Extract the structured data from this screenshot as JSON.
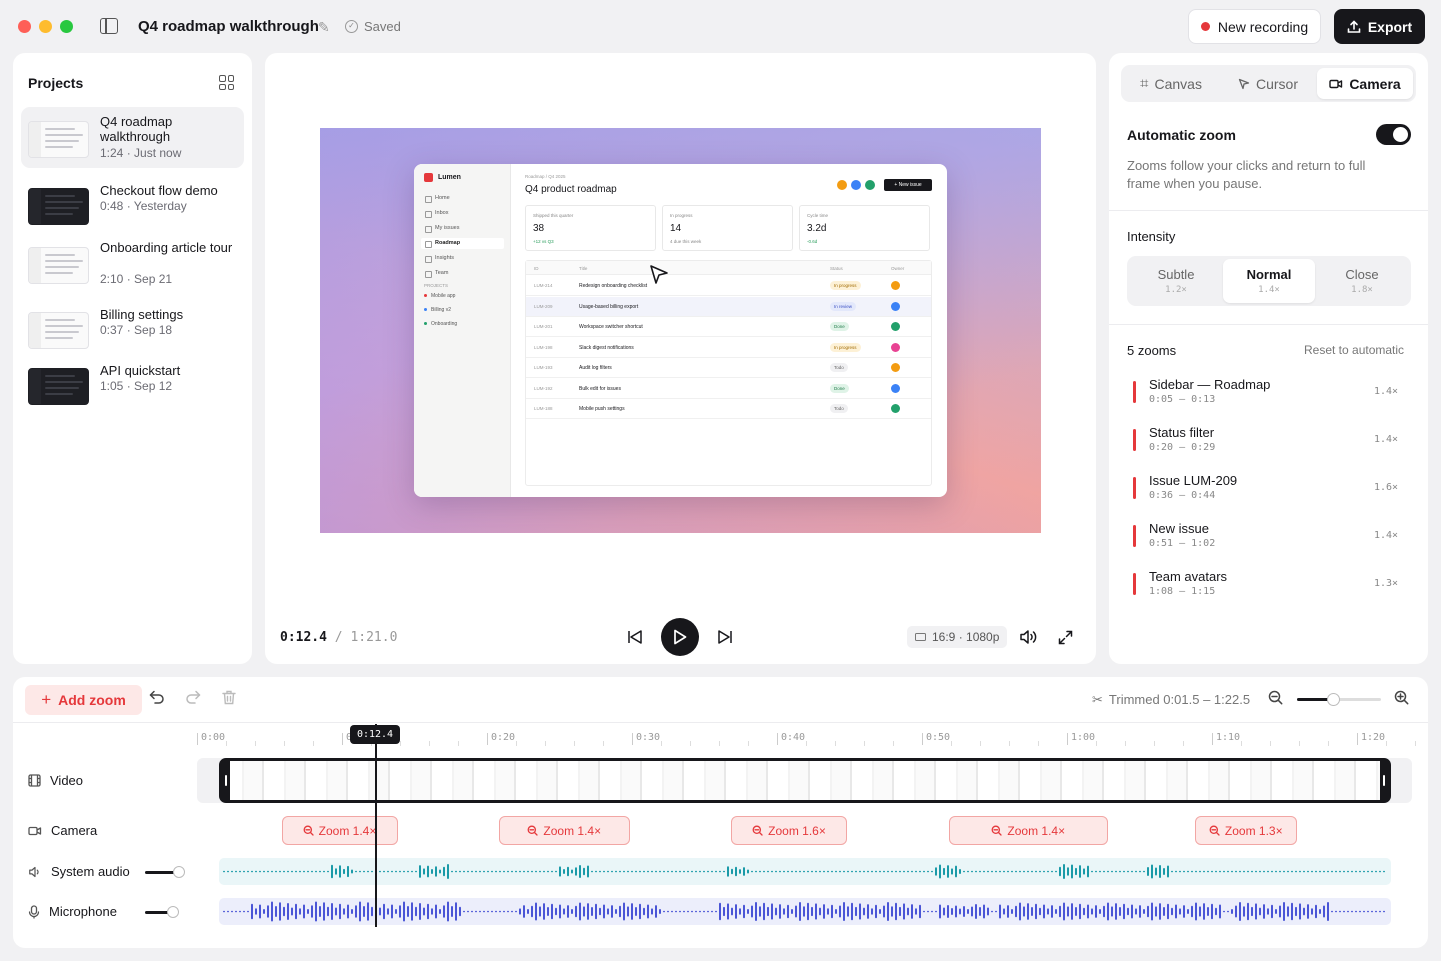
{
  "window": {
    "title": "Q4 roadmap walkthrough",
    "saved_status": "Saved"
  },
  "toolbar": {
    "new_recording_label": "New recording",
    "export_label": "Export"
  },
  "projects": {
    "heading": "Projects",
    "items": [
      {
        "name": "Q4 roadmap walkthrough",
        "meta": "1:24 · Just now",
        "theme": "light"
      },
      {
        "name": "Checkout flow demo",
        "meta": "0:48 · Yesterday",
        "theme": "dark"
      },
      {
        "name": "Onboarding article tour",
        "meta": "2:10 · Sep 21",
        "theme": "light"
      },
      {
        "name": "Billing settings",
        "meta": "0:37 · Sep 18",
        "theme": "light"
      },
      {
        "name": "API quickstart",
        "meta": "1:05 · Sep 12",
        "theme": "dark"
      }
    ]
  },
  "preview": {
    "app": {
      "brand": "Lumen",
      "nav": [
        "Home",
        "Inbox",
        "My issues",
        "Roadmap",
        "Insights",
        "Team"
      ],
      "projects_heading": "PROJECTS",
      "projects": [
        {
          "name": "Mobile app",
          "color": "#e5383b"
        },
        {
          "name": "Billing v2",
          "color": "#3b82f6"
        },
        {
          "name": "Onboarding",
          "color": "#22a06b"
        }
      ],
      "breadcrumb": "Roadmap  /  Q4 2025",
      "title": "Q4 product roadmap",
      "new_issue_label": "+ New issue",
      "owner_dots": [
        "#f39c12",
        "#3b82f6",
        "#22a06b"
      ],
      "stats": [
        {
          "label": "Shipped this quarter",
          "value": "38",
          "sub": "+12 vs Q3"
        },
        {
          "label": "In progress",
          "value": "14",
          "sub": "4 due this week"
        },
        {
          "label": "Cycle time",
          "value": "3.2d",
          "sub": "-0.6d"
        }
      ],
      "table_headers": [
        "ID",
        "Title",
        "Status",
        "Owner"
      ],
      "rows": [
        {
          "id": "LUM-214",
          "title": "Redesign onboarding checklist",
          "status": "In progress",
          "owner_color": "#f39c12"
        },
        {
          "id": "LUM-209",
          "title": "Usage-based billing export",
          "status": "In review",
          "owner_color": "#3b82f6"
        },
        {
          "id": "LUM-201",
          "title": "Workspace switcher shortcut",
          "status": "Done",
          "owner_color": "#22a06b"
        },
        {
          "id": "LUM-198",
          "title": "Slack digest notifications",
          "status": "In progress",
          "owner_color": "#e84393"
        },
        {
          "id": "LUM-193",
          "title": "Audit log filters",
          "status": "Todo",
          "owner_color": "#f39c12"
        },
        {
          "id": "LUM-192",
          "title": "Bulk edit for issues",
          "status": "Done",
          "owner_color": "#3b82f6"
        },
        {
          "id": "LUM-188",
          "title": "Mobile push settings",
          "status": "Todo",
          "owner_color": "#22a06b"
        }
      ]
    },
    "current_time": "0:12.4",
    "separator": "/",
    "total_time": "1:21.0",
    "resolution": "16:9 · 1080p"
  },
  "inspector": {
    "tabs": [
      "Canvas",
      "Cursor",
      "Camera"
    ],
    "active_tab": "Camera",
    "auto_zoom_label": "Automatic zoom",
    "auto_zoom_on": true,
    "auto_zoom_desc": "Zooms follow your clicks and return to full frame when you pause.",
    "intensity_label": "Intensity",
    "intensity_options": [
      {
        "name": "Subtle",
        "value": "1.2×"
      },
      {
        "name": "Normal",
        "value": "1.4×"
      },
      {
        "name": "Close",
        "value": "1.8×"
      }
    ],
    "intensity_selected": "Normal",
    "zoom_count": "5 zooms",
    "reset_label": "Reset to automatic",
    "zooms": [
      {
        "name": "Sidebar — Roadmap",
        "range": "0:05 – 0:13",
        "factor": "1.4×"
      },
      {
        "name": "Status filter",
        "range": "0:20 – 0:29",
        "factor": "1.4×"
      },
      {
        "name": "Issue LUM-209",
        "range": "0:36 – 0:44",
        "factor": "1.6×"
      },
      {
        "name": "New issue",
        "range": "0:51 – 1:02",
        "factor": "1.4×"
      },
      {
        "name": "Team avatars",
        "range": "1:08 – 1:15",
        "factor": "1.3×"
      }
    ]
  },
  "timeline": {
    "add_zoom_label": "Add zoom",
    "trimmed_label": "Trimmed 0:01.5 – 1:22.5",
    "ruler_ticks": [
      "0:00",
      "0:10",
      "0:20",
      "0:30",
      "0:40",
      "0:50",
      "1:00",
      "1:10",
      "1:20"
    ],
    "playhead_label": "0:12.4",
    "tracks": {
      "video": "Video",
      "camera": "Camera",
      "system_audio": "System audio",
      "microphone": "Microphone"
    },
    "zoom_clips": [
      {
        "label": "Zoom 1.4×",
        "start": 5,
        "end": 13
      },
      {
        "label": "Zoom 1.4×",
        "start": 20,
        "end": 29
      },
      {
        "label": "Zoom 1.6×",
        "start": 36,
        "end": 44
      },
      {
        "label": "Zoom 1.4×",
        "start": 51,
        "end": 62
      },
      {
        "label": "Zoom 1.3×",
        "start": 68,
        "end": 75
      }
    ],
    "colors": {
      "accent": "#e5383b",
      "system_audio_wave": "#1a9aa8",
      "mic_wave": "#4a55d6"
    }
  }
}
